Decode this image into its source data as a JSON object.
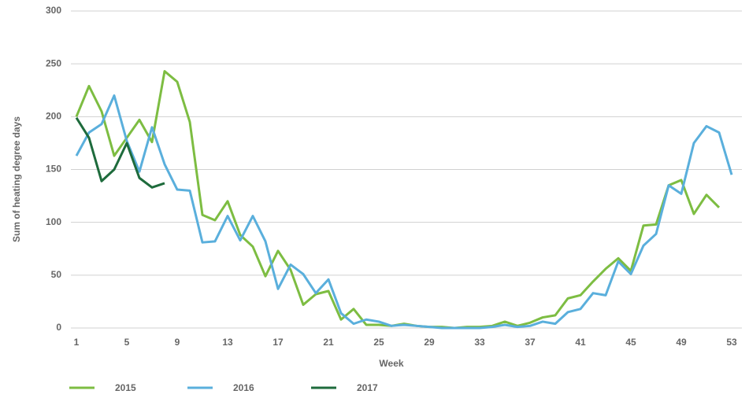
{
  "chart_data": {
    "type": "line",
    "xlabel": "Week",
    "ylabel": "Sum of heating degree days",
    "x": [
      1,
      2,
      3,
      4,
      5,
      6,
      7,
      8,
      9,
      10,
      11,
      12,
      13,
      14,
      15,
      16,
      17,
      18,
      19,
      20,
      21,
      22,
      23,
      24,
      25,
      26,
      27,
      28,
      29,
      30,
      31,
      32,
      33,
      34,
      35,
      36,
      37,
      38,
      39,
      40,
      41,
      42,
      43,
      44,
      45,
      46,
      47,
      48,
      49,
      50,
      51,
      52,
      53
    ],
    "series": [
      {
        "name": "2015",
        "color": "#7dbd42",
        "values": [
          200,
          229,
          205,
          163,
          180,
          197,
          176,
          243,
          233,
          195,
          107,
          102,
          120,
          88,
          77,
          49,
          73,
          55,
          22,
          32,
          35,
          8,
          18,
          3,
          3,
          2,
          4,
          2,
          1,
          1,
          0,
          1,
          1,
          2,
          6,
          2,
          5,
          10,
          12,
          28,
          31,
          44,
          56,
          66,
          54,
          97,
          98,
          135,
          140,
          108,
          126,
          114,
          null
        ]
      },
      {
        "name": "2016",
        "color": "#5aafdc",
        "values": [
          163,
          185,
          193,
          220,
          177,
          148,
          190,
          155,
          131,
          130,
          81,
          82,
          106,
          83,
          106,
          82,
          37,
          60,
          51,
          33,
          46,
          14,
          4,
          8,
          6,
          2,
          3,
          2,
          1,
          0,
          0,
          0,
          0,
          1,
          3,
          1,
          2,
          6,
          4,
          15,
          18,
          33,
          31,
          63,
          51,
          78,
          89,
          135,
          127,
          175,
          191,
          185,
          145
        ]
      },
      {
        "name": "2017",
        "color": "#1e6b3c",
        "values": [
          199,
          180,
          139,
          150,
          175,
          142,
          133,
          137,
          null,
          null,
          null,
          null,
          null,
          null,
          null,
          null,
          null,
          null,
          null,
          null,
          null,
          null,
          null,
          null,
          null,
          null,
          null,
          null,
          null,
          null,
          null,
          null,
          null,
          null,
          null,
          null,
          null,
          null,
          null,
          null,
          null,
          null,
          null,
          null,
          null,
          null,
          null,
          null,
          null,
          null,
          null,
          null,
          null
        ]
      }
    ],
    "xlim": [
      1,
      53
    ],
    "xticks": [
      1,
      5,
      9,
      13,
      17,
      21,
      25,
      29,
      33,
      37,
      41,
      45,
      49,
      53
    ],
    "ylim": [
      0,
      300
    ],
    "yticks": [
      0,
      50,
      100,
      150,
      200,
      250,
      300
    ],
    "grid": true,
    "legend": "bottom"
  }
}
